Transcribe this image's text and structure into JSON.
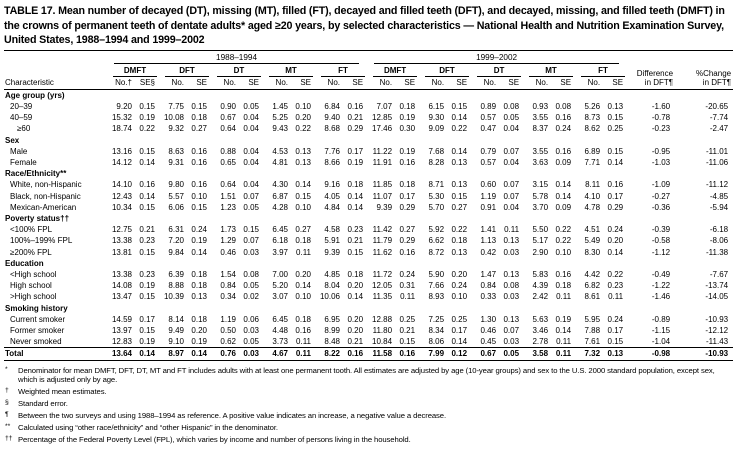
{
  "title": "TABLE 17. Mean number of decayed (DT), missing (MT), filled (FT), decayed and filled teeth (DFT), and decayed, missing, and filled teeth (DMFT) in the crowns of permanent teeth of dentate adults* aged ≥20 years, by selected characteristics — National Health and Nutrition Examination Survey, United States, 1988–1994 and 1999–2002",
  "table": {
    "header": {
      "characteristic": "Characteristic",
      "periods": [
        "1988–1994",
        "1999–2002"
      ],
      "measures": [
        "DMFT",
        "DFT",
        "DT",
        "MT",
        "FT",
        "DMFT",
        "DFT",
        "DT",
        "MT",
        "FT"
      ],
      "subcols": [
        "No.†",
        "SE§",
        "No.",
        "SE",
        "No.",
        "SE",
        "No.",
        "SE",
        "No.",
        "SE",
        "No.",
        "SE",
        "No.",
        "SE",
        "No.",
        "SE",
        "No.",
        "SE",
        "No.",
        "SE"
      ],
      "difference": [
        "Difference",
        "in DFT¶"
      ],
      "pct_change": [
        "%Change",
        "in DFT¶"
      ]
    },
    "rows": [
      {
        "label": "Age group (yrs)",
        "style": "category",
        "cells": []
      },
      {
        "label": "20–39",
        "style": "item",
        "cells": [
          "9.20",
          "0.15",
          "7.75",
          "0.15",
          "0.90",
          "0.05",
          "1.45",
          "0.10",
          "6.84",
          "0.16",
          "7.07",
          "0.18",
          "6.15",
          "0.15",
          "0.89",
          "0.08",
          "0.93",
          "0.08",
          "5.26",
          "0.13",
          "-1.60",
          "-20.65"
        ]
      },
      {
        "label": "40–59",
        "style": "item",
        "cells": [
          "15.32",
          "0.19",
          "10.08",
          "0.18",
          "0.67",
          "0.04",
          "5.25",
          "0.20",
          "9.40",
          "0.21",
          "12.85",
          "0.19",
          "9.30",
          "0.14",
          "0.57",
          "0.05",
          "3.55",
          "0.16",
          "8.73",
          "0.15",
          "-0.78",
          "-7.74"
        ]
      },
      {
        "label": "≥60",
        "style": "item-deep",
        "cells": [
          "18.74",
          "0.22",
          "9.32",
          "0.27",
          "0.64",
          "0.04",
          "9.43",
          "0.22",
          "8.68",
          "0.29",
          "17.46",
          "0.30",
          "9.09",
          "0.22",
          "0.47",
          "0.04",
          "8.37",
          "0.24",
          "8.62",
          "0.25",
          "-0.23",
          "-2.47"
        ]
      },
      {
        "label": "Sex",
        "style": "category",
        "cells": []
      },
      {
        "label": "Male",
        "style": "item",
        "cells": [
          "13.16",
          "0.15",
          "8.63",
          "0.16",
          "0.88",
          "0.04",
          "4.53",
          "0.13",
          "7.76",
          "0.17",
          "11.22",
          "0.19",
          "7.68",
          "0.14",
          "0.79",
          "0.07",
          "3.55",
          "0.16",
          "6.89",
          "0.15",
          "-0.95",
          "-11.01"
        ]
      },
      {
        "label": "Female",
        "style": "item",
        "cells": [
          "14.12",
          "0.14",
          "9.31",
          "0.16",
          "0.65",
          "0.04",
          "4.81",
          "0.13",
          "8.66",
          "0.19",
          "11.91",
          "0.16",
          "8.28",
          "0.13",
          "0.57",
          "0.04",
          "3.63",
          "0.09",
          "7.71",
          "0.14",
          "-1.03",
          "-11.06"
        ]
      },
      {
        "label": "Race/Ethnicity**",
        "style": "category",
        "cells": []
      },
      {
        "label": "White, non-Hispanic",
        "style": "item",
        "cells": [
          "14.10",
          "0.16",
          "9.80",
          "0.16",
          "0.64",
          "0.04",
          "4.30",
          "0.14",
          "9.16",
          "0.18",
          "11.85",
          "0.18",
          "8.71",
          "0.13",
          "0.60",
          "0.07",
          "3.15",
          "0.14",
          "8.11",
          "0.16",
          "-1.09",
          "-11.12"
        ]
      },
      {
        "label": "Black, non-Hispanic",
        "style": "item",
        "cells": [
          "12.43",
          "0.14",
          "5.57",
          "0.10",
          "1.51",
          "0.07",
          "6.87",
          "0.15",
          "4.05",
          "0.14",
          "11.07",
          "0.17",
          "5.30",
          "0.15",
          "1.19",
          "0.07",
          "5.78",
          "0.14",
          "4.10",
          "0.17",
          "-0.27",
          "-4.85"
        ]
      },
      {
        "label": "Mexican-American",
        "style": "item",
        "cells": [
          "10.34",
          "0.15",
          "6.06",
          "0.15",
          "1.23",
          "0.05",
          "4.28",
          "0.10",
          "4.84",
          "0.14",
          "9.39",
          "0.29",
          "5.70",
          "0.27",
          "0.91",
          "0.04",
          "3.70",
          "0.09",
          "4.78",
          "0.29",
          "-0.36",
          "-5.94"
        ]
      },
      {
        "label": "Poverty status††",
        "style": "category",
        "cells": []
      },
      {
        "label": "<100% FPL",
        "style": "item",
        "cells": [
          "12.75",
          "0.21",
          "6.31",
          "0.24",
          "1.73",
          "0.15",
          "6.45",
          "0.27",
          "4.58",
          "0.23",
          "11.42",
          "0.27",
          "5.92",
          "0.22",
          "1.41",
          "0.11",
          "5.50",
          "0.22",
          "4.51",
          "0.24",
          "-0.39",
          "-6.18"
        ]
      },
      {
        "label": "100%–199% FPL",
        "style": "item",
        "cells": [
          "13.38",
          "0.23",
          "7.20",
          "0.19",
          "1.29",
          "0.07",
          "6.18",
          "0.18",
          "5.91",
          "0.21",
          "11.79",
          "0.29",
          "6.62",
          "0.18",
          "1.13",
          "0.13",
          "5.17",
          "0.22",
          "5.49",
          "0.20",
          "-0.58",
          "-8.06"
        ]
      },
      {
        "label": "≥200% FPL",
        "style": "item",
        "cells": [
          "13.81",
          "0.15",
          "9.84",
          "0.14",
          "0.46",
          "0.03",
          "3.97",
          "0.11",
          "9.39",
          "0.15",
          "11.62",
          "0.16",
          "8.72",
          "0.13",
          "0.42",
          "0.03",
          "2.90",
          "0.10",
          "8.30",
          "0.14",
          "-1.12",
          "-11.38"
        ]
      },
      {
        "label": "Education",
        "style": "category",
        "cells": []
      },
      {
        "label": "<High school",
        "style": "item",
        "cells": [
          "13.38",
          "0.23",
          "6.39",
          "0.18",
          "1.54",
          "0.08",
          "7.00",
          "0.20",
          "4.85",
          "0.18",
          "11.72",
          "0.24",
          "5.90",
          "0.20",
          "1.47",
          "0.13",
          "5.83",
          "0.16",
          "4.42",
          "0.22",
          "-0.49",
          "-7.67"
        ]
      },
      {
        "label": "High school",
        "style": "item",
        "cells": [
          "14.08",
          "0.19",
          "8.88",
          "0.18",
          "0.84",
          "0.05",
          "5.20",
          "0.14",
          "8.04",
          "0.20",
          "12.05",
          "0.31",
          "7.66",
          "0.24",
          "0.84",
          "0.08",
          "4.39",
          "0.18",
          "6.82",
          "0.23",
          "-1.22",
          "-13.74"
        ]
      },
      {
        "label": ">High school",
        "style": "item",
        "cells": [
          "13.47",
          "0.15",
          "10.39",
          "0.13",
          "0.34",
          "0.02",
          "3.07",
          "0.10",
          "10.06",
          "0.14",
          "11.35",
          "0.11",
          "8.93",
          "0.10",
          "0.33",
          "0.03",
          "2.42",
          "0.11",
          "8.61",
          "0.11",
          "-1.46",
          "-14.05"
        ]
      },
      {
        "label": "Smoking history",
        "style": "category",
        "cells": []
      },
      {
        "label": "Current smoker",
        "style": "item",
        "cells": [
          "14.59",
          "0.17",
          "8.14",
          "0.18",
          "1.19",
          "0.06",
          "6.45",
          "0.18",
          "6.95",
          "0.20",
          "12.88",
          "0.25",
          "7.25",
          "0.25",
          "1.30",
          "0.13",
          "5.63",
          "0.19",
          "5.95",
          "0.24",
          "-0.89",
          "-10.93"
        ]
      },
      {
        "label": "Former smoker",
        "style": "item",
        "cells": [
          "13.97",
          "0.15",
          "9.49",
          "0.20",
          "0.50",
          "0.03",
          "4.48",
          "0.16",
          "8.99",
          "0.20",
          "11.80",
          "0.21",
          "8.34",
          "0.17",
          "0.46",
          "0.07",
          "3.46",
          "0.14",
          "7.88",
          "0.17",
          "-1.15",
          "-12.12"
        ]
      },
      {
        "label": "Never smoked",
        "style": "item",
        "cells": [
          "12.83",
          "0.19",
          "9.10",
          "0.19",
          "0.62",
          "0.05",
          "3.73",
          "0.11",
          "8.48",
          "0.21",
          "10.84",
          "0.15",
          "8.06",
          "0.14",
          "0.45",
          "0.03",
          "2.78",
          "0.11",
          "7.61",
          "0.15",
          "-1.04",
          "-11.43"
        ]
      },
      {
        "label": "Total",
        "style": "total",
        "cells": [
          "13.64",
          "0.14",
          "8.97",
          "0.14",
          "0.76",
          "0.03",
          "4.67",
          "0.11",
          "8.22",
          "0.16",
          "11.58",
          "0.16",
          "7.99",
          "0.12",
          "0.67",
          "0.05",
          "3.58",
          "0.11",
          "7.32",
          "0.13",
          "-0.98",
          "-10.93"
        ]
      }
    ]
  },
  "footnotes": [
    {
      "marker": "*",
      "text": "Denominator for mean DMFT, DFT, DT, MT and FT includes adults with at least one permanent tooth. All estimates are adjusted by age (10-year groups) and sex to the U.S. 2000 standard population, except sex, which is adjusted only by age."
    },
    {
      "marker": "†",
      "text": "Weighted mean estimates."
    },
    {
      "marker": "§",
      "text": "Standard error."
    },
    {
      "marker": "¶",
      "text": "Between the two surveys and using 1988–1994 as reference. A positive value indicates an increase, a negative value a decrease."
    },
    {
      "marker": "**",
      "text": "Calculated using “other race/ethnicity” and “other Hispanic” in the denominator."
    },
    {
      "marker": "††",
      "text": "Percentage of the Federal Poverty Level (FPL), which varies by income and number of persons living in the household."
    }
  ]
}
